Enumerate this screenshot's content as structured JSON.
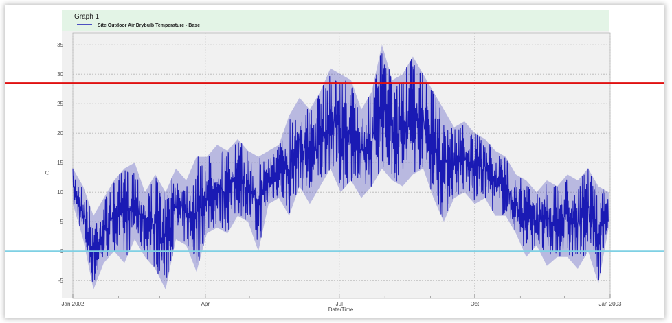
{
  "chart_data": {
    "type": "line",
    "title": "Graph 1",
    "xlabel": "Date/Time",
    "ylabel": "C",
    "ylim": [
      -8,
      37
    ],
    "yticks": [
      -5,
      0,
      5,
      10,
      15,
      20,
      25,
      30,
      35
    ],
    "xlim": [
      "2002-01-01",
      "2003-01-01"
    ],
    "xticks": [
      {
        "date": "2002-01-01",
        "label": "Jan 2002"
      },
      {
        "date": "2002-04-01",
        "label": "Apr"
      },
      {
        "date": "2002-07-01",
        "label": "Jul"
      },
      {
        "date": "2002-10-01",
        "label": "Oct"
      },
      {
        "date": "2003-01-01",
        "label": "Jan 2003"
      }
    ],
    "minor_xticks": [
      "2002-02-01",
      "2002-03-01",
      "2002-05-01",
      "2002-06-01",
      "2002-08-01",
      "2002-09-01",
      "2002-11-01",
      "2002-12-01"
    ],
    "grid": true,
    "legend_position": "top-left",
    "series": [
      {
        "name": "Site Outdoor Air Drybulb Temperature - Base",
        "color": "#1a1ab4",
        "envelope": [
          {
            "x": "2002-01-01",
            "min": 8,
            "max": 14
          },
          {
            "x": "2002-01-08",
            "min": 2,
            "max": 11
          },
          {
            "x": "2002-01-15",
            "min": -6.5,
            "max": 6
          },
          {
            "x": "2002-01-22",
            "min": -2,
            "max": 9
          },
          {
            "x": "2002-01-29",
            "min": 0,
            "max": 12
          },
          {
            "x": "2002-02-05",
            "min": -2,
            "max": 14
          },
          {
            "x": "2002-02-12",
            "min": 2,
            "max": 15
          },
          {
            "x": "2002-02-19",
            "min": -1,
            "max": 10
          },
          {
            "x": "2002-02-26",
            "min": -3,
            "max": 13
          },
          {
            "x": "2002-03-05",
            "min": -6.5,
            "max": 10
          },
          {
            "x": "2002-03-12",
            "min": 2,
            "max": 14
          },
          {
            "x": "2002-03-19",
            "min": 1,
            "max": 12
          },
          {
            "x": "2002-03-26",
            "min": -3.5,
            "max": 16
          },
          {
            "x": "2002-04-02",
            "min": 3,
            "max": 16
          },
          {
            "x": "2002-04-09",
            "min": 4,
            "max": 18
          },
          {
            "x": "2002-04-16",
            "min": 3,
            "max": 17
          },
          {
            "x": "2002-04-23",
            "min": 6,
            "max": 19
          },
          {
            "x": "2002-04-30",
            "min": 5,
            "max": 17
          },
          {
            "x": "2002-05-07",
            "min": 0,
            "max": 16
          },
          {
            "x": "2002-05-14",
            "min": 8,
            "max": 17
          },
          {
            "x": "2002-05-21",
            "min": 9,
            "max": 18
          },
          {
            "x": "2002-05-28",
            "min": 6,
            "max": 23
          },
          {
            "x": "2002-06-04",
            "min": 11,
            "max": 26
          },
          {
            "x": "2002-06-11",
            "min": 8,
            "max": 24
          },
          {
            "x": "2002-06-18",
            "min": 11,
            "max": 27
          },
          {
            "x": "2002-06-25",
            "min": 14,
            "max": 31
          },
          {
            "x": "2002-07-02",
            "min": 10,
            "max": 30
          },
          {
            "x": "2002-07-09",
            "min": 12,
            "max": 29
          },
          {
            "x": "2002-07-16",
            "min": 9,
            "max": 24
          },
          {
            "x": "2002-07-23",
            "min": 11,
            "max": 27
          },
          {
            "x": "2002-07-30",
            "min": 14,
            "max": 35
          },
          {
            "x": "2002-08-06",
            "min": 12,
            "max": 29
          },
          {
            "x": "2002-08-13",
            "min": 11,
            "max": 30
          },
          {
            "x": "2002-08-20",
            "min": 13,
            "max": 33
          },
          {
            "x": "2002-08-27",
            "min": 14,
            "max": 30
          },
          {
            "x": "2002-09-03",
            "min": 9,
            "max": 27
          },
          {
            "x": "2002-09-10",
            "min": 5,
            "max": 24
          },
          {
            "x": "2002-09-17",
            "min": 9,
            "max": 21
          },
          {
            "x": "2002-09-24",
            "min": 10,
            "max": 22
          },
          {
            "x": "2002-10-01",
            "min": 8,
            "max": 20
          },
          {
            "x": "2002-10-08",
            "min": 9,
            "max": 19
          },
          {
            "x": "2002-10-15",
            "min": 6,
            "max": 17
          },
          {
            "x": "2002-10-22",
            "min": 6,
            "max": 16
          },
          {
            "x": "2002-10-29",
            "min": 3,
            "max": 13
          },
          {
            "x": "2002-11-05",
            "min": -1,
            "max": 12
          },
          {
            "x": "2002-11-12",
            "min": 1,
            "max": 10
          },
          {
            "x": "2002-11-19",
            "min": -2.5,
            "max": 12
          },
          {
            "x": "2002-11-26",
            "min": -1,
            "max": 11
          },
          {
            "x": "2002-12-03",
            "min": -1,
            "max": 13
          },
          {
            "x": "2002-12-10",
            "min": -3,
            "max": 12
          },
          {
            "x": "2002-12-17",
            "min": 0,
            "max": 14
          },
          {
            "x": "2002-12-24",
            "min": -5.5,
            "max": 11
          },
          {
            "x": "2002-12-31",
            "min": 4,
            "max": 10
          }
        ]
      }
    ],
    "reference_lines": [
      {
        "y": 28.5,
        "color": "#e01010"
      },
      {
        "y": 0,
        "color": "#7fd0e4"
      }
    ]
  }
}
